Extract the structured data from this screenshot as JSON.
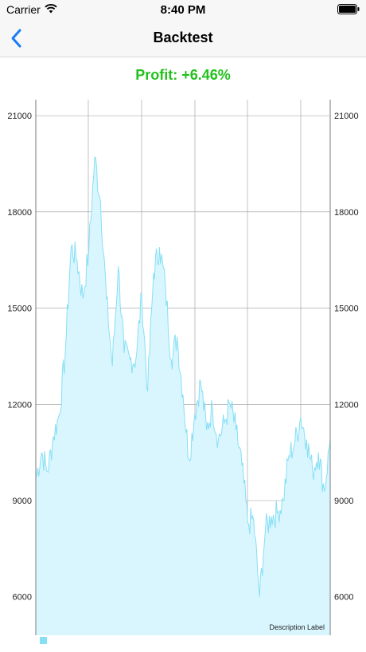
{
  "status_bar": {
    "carrier": "Carrier",
    "time": "8:40 PM"
  },
  "nav": {
    "title": "Backtest"
  },
  "profit_label": "Profit: +6.46%",
  "chart": {
    "description": "Description Label",
    "fill_color": "#d9f6ff",
    "line_color": "#87dff4",
    "grid_color": "#9a9a9a"
  },
  "chart_data": {
    "type": "area",
    "ylim": [
      4800,
      21500
    ],
    "yticks": [
      6000,
      9000,
      12000,
      15000,
      18000,
      21000
    ],
    "ytick_labels": [
      "6000",
      "9000",
      "12000",
      "15000",
      "18000",
      "21000"
    ],
    "x": [
      0,
      2,
      4,
      6,
      8,
      10,
      12,
      14,
      16,
      18,
      20,
      22,
      24,
      26,
      28,
      30,
      32,
      34,
      36,
      38,
      40,
      42,
      44,
      46,
      48,
      50,
      52,
      54,
      56,
      58,
      60,
      62,
      64,
      66,
      68,
      70,
      72,
      74,
      76,
      78,
      80,
      82,
      84,
      86,
      88,
      90,
      92,
      94,
      96,
      98,
      100
    ],
    "values": [
      9700,
      10500,
      9900,
      11000,
      11700,
      13600,
      16900,
      16500,
      15300,
      16800,
      19700,
      18300,
      15300,
      13200,
      16300,
      13600,
      13400,
      13400,
      15400,
      12400,
      16100,
      16900,
      15700,
      13400,
      14100,
      12300,
      10300,
      11700,
      12700,
      11200,
      11900,
      10900,
      11400,
      12000,
      11200,
      10100,
      8300,
      8400,
      6000,
      8100,
      8500,
      8600,
      9000,
      10400,
      10800,
      11600,
      10900,
      9900,
      10500,
      9300,
      10900
    ]
  }
}
